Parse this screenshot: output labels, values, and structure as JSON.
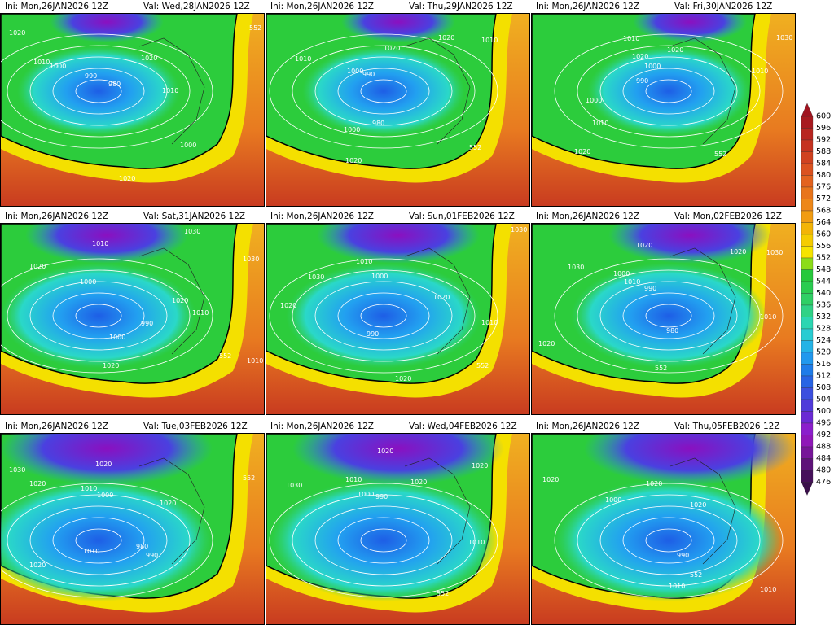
{
  "panels": [
    {
      "ini": "Ini: Mon,26JAN2026 12Z",
      "val": "Val: Wed,28JAN2026 12Z",
      "contours": [
        "1020",
        "1010",
        "1000",
        "990",
        "980",
        "1020",
        "1010",
        "1000",
        "1020",
        "552"
      ]
    },
    {
      "ini": "Ini: Mon,26JAN2026 12Z",
      "val": "Val: Thu,29JAN2026 12Z",
      "contours": [
        "1020",
        "1010",
        "1020",
        "1010",
        "1000",
        "990",
        "980",
        "1000",
        "1020",
        "552"
      ]
    },
    {
      "ini": "Ini: Mon,26JAN2026 12Z",
      "val": "Val: Fri,30JAN2026 12Z",
      "contours": [
        "1030",
        "1010",
        "1020",
        "1000",
        "1020",
        "1010",
        "990",
        "1000",
        "1010",
        "1020",
        "552"
      ]
    },
    {
      "ini": "Ini: Mon,26JAN2026 12Z",
      "val": "Val: Sat,31JAN2026 12Z",
      "contours": [
        "1030",
        "1010",
        "1020",
        "1000",
        "1020",
        "1010",
        "990",
        "1000",
        "1020",
        "552",
        "1010",
        "1030"
      ]
    },
    {
      "ini": "Ini: Mon,26JAN2026 12Z",
      "val": "Val: Sun,01FEB2026 12Z",
      "contours": [
        "1010",
        "1030",
        "1000",
        "1020",
        "990",
        "1010",
        "1020",
        "1020",
        "552",
        "1030"
      ]
    },
    {
      "ini": "Ini: Mon,26JAN2026 12Z",
      "val": "Val: Mon,02FEB2026 12Z",
      "contours": [
        "1020",
        "1030",
        "1000",
        "1010",
        "990",
        "1020",
        "1030",
        "980",
        "1010",
        "1020",
        "552"
      ]
    },
    {
      "ini": "Ini: Mon,26JAN2026 12Z",
      "val": "Val: Tue,03FEB2026 12Z",
      "contours": [
        "1020",
        "1030",
        "1010",
        "1000",
        "1020",
        "1020",
        "980",
        "990",
        "1010",
        "1020",
        "552"
      ]
    },
    {
      "ini": "Ini: Mon,26JAN2026 12Z",
      "val": "Val: Wed,04FEB2026 12Z",
      "contours": [
        "1020",
        "1010",
        "1030",
        "1000",
        "990",
        "1020",
        "1020",
        "1010",
        "552"
      ]
    },
    {
      "ini": "Ini: Mon,26JAN2026 12Z",
      "val": "Val: Thu,05FEB2026 12Z",
      "contours": [
        "1020",
        "1020",
        "1000",
        "1020",
        "990",
        "1010",
        "552",
        "1010"
      ]
    }
  ],
  "colorbar": {
    "levels": [
      600,
      596,
      592,
      588,
      584,
      580,
      576,
      572,
      568,
      564,
      560,
      556,
      552,
      548,
      544,
      540,
      536,
      532,
      528,
      524,
      520,
      516,
      512,
      508,
      504,
      500,
      496,
      492,
      488,
      484,
      480,
      476
    ]
  }
}
